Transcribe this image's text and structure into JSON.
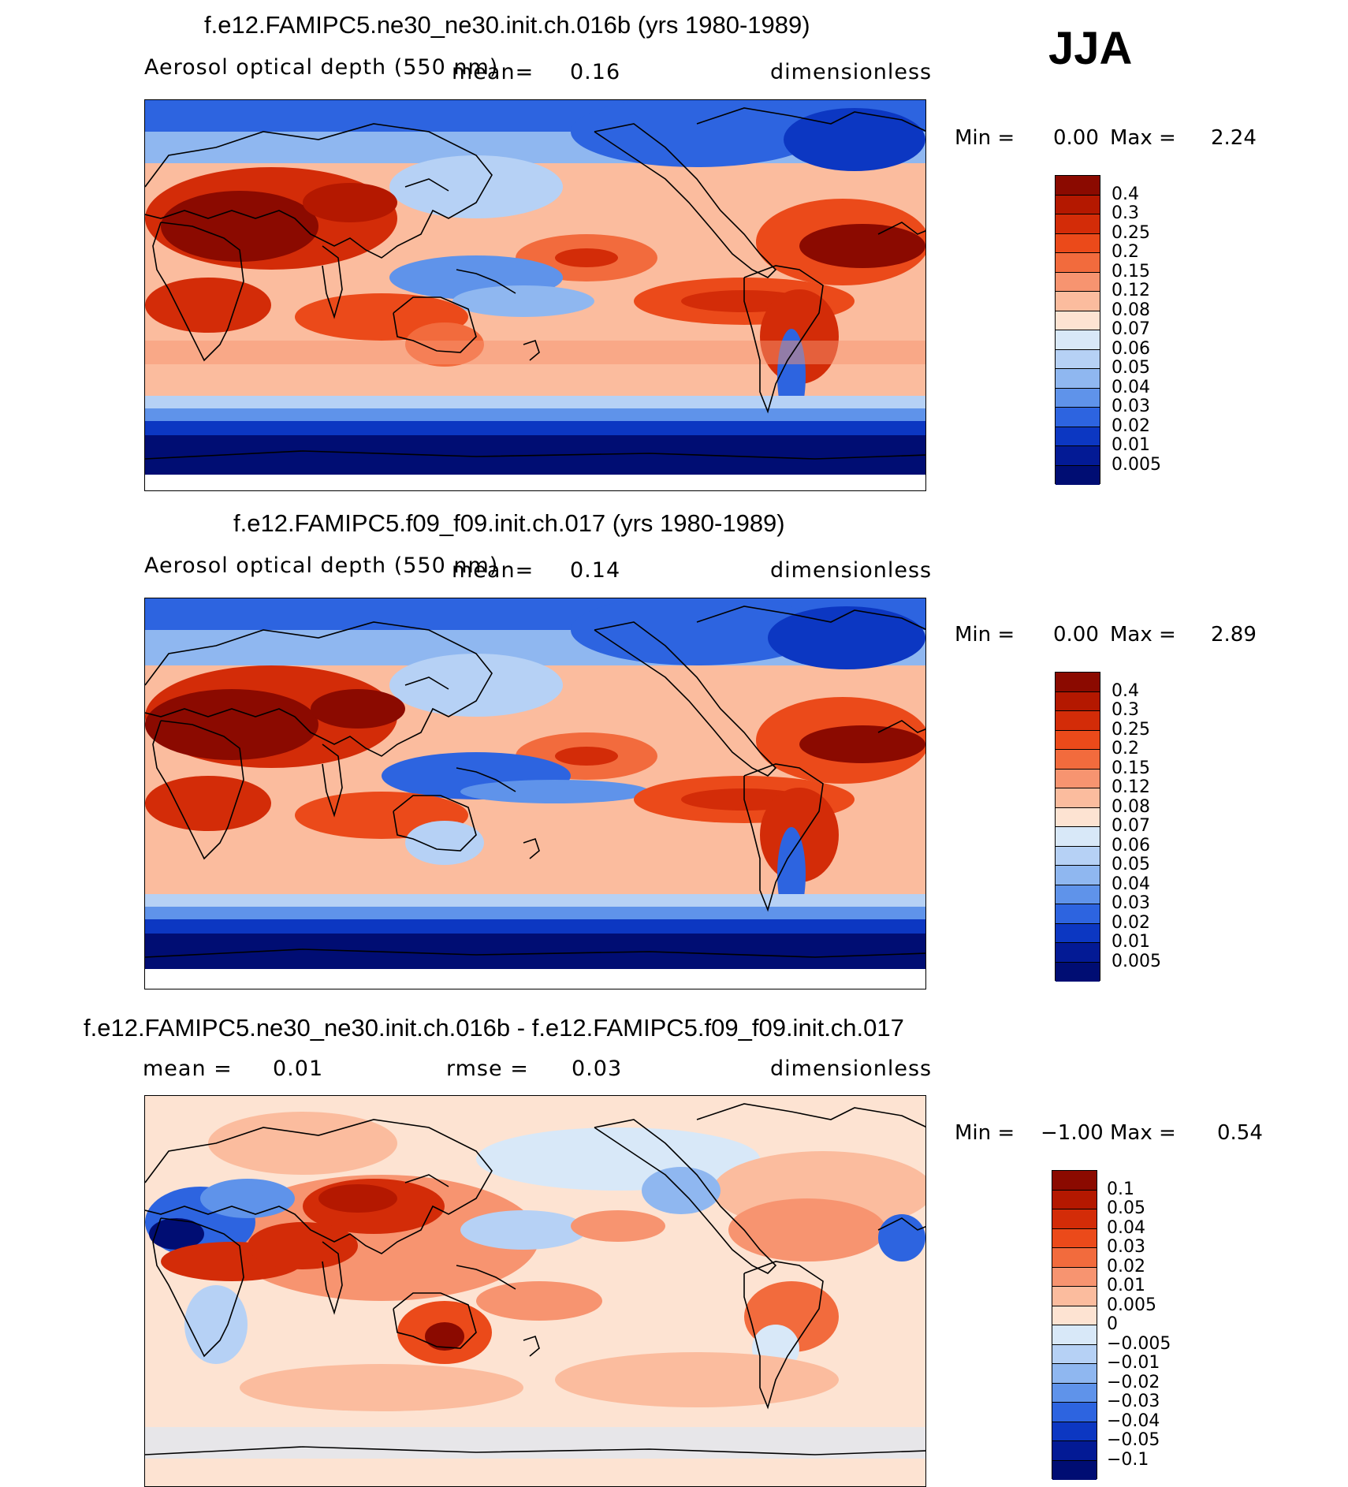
{
  "season": "JJA",
  "panels": [
    {
      "title": "f.e12.FAMIPC5.ne30_ne30.init.ch.016b (yrs 1980-1989)",
      "variable": "Aerosol optical depth (550 nm)",
      "mean_label": "mean=",
      "mean_value": "0.16",
      "units": "dimensionless",
      "min_label": "Min =",
      "min_value": "0.00",
      "max_label": "Max =",
      "max_value": "2.24",
      "colorbar": {
        "labels": [
          "0.4",
          "0.3",
          "0.25",
          "0.2",
          "0.15",
          "0.12",
          "0.08",
          "0.07",
          "0.06",
          "0.05",
          "0.04",
          "0.03",
          "0.02",
          "0.01",
          "0.005"
        ],
        "colors": [
          "#8b0a00",
          "#b41800",
          "#d32c08",
          "#eb4a1a",
          "#f26b3d",
          "#f79470",
          "#fbbc9e",
          "#fde3d2",
          "#d8e8f8",
          "#b6d1f5",
          "#8fb7f0",
          "#5f93ea",
          "#2d64e0",
          "#0c37c2",
          "#031a95",
          "#000d73"
        ]
      }
    },
    {
      "title": "f.e12.FAMIPC5.f09_f09.init.ch.017 (yrs 1980-1989)",
      "variable": "Aerosol optical depth (550 nm)",
      "mean_label": "mean=",
      "mean_value": "0.14",
      "units": "dimensionless",
      "min_label": "Min =",
      "min_value": "0.00",
      "max_label": "Max =",
      "max_value": "2.89",
      "colorbar": {
        "labels": [
          "0.4",
          "0.3",
          "0.25",
          "0.2",
          "0.15",
          "0.12",
          "0.08",
          "0.07",
          "0.06",
          "0.05",
          "0.04",
          "0.03",
          "0.02",
          "0.01",
          "0.005"
        ],
        "colors": [
          "#8b0a00",
          "#b41800",
          "#d32c08",
          "#eb4a1a",
          "#f26b3d",
          "#f79470",
          "#fbbc9e",
          "#fde3d2",
          "#d8e8f8",
          "#b6d1f5",
          "#8fb7f0",
          "#5f93ea",
          "#2d64e0",
          "#0c37c2",
          "#031a95",
          "#000d73"
        ]
      }
    },
    {
      "title": "f.e12.FAMIPC5.ne30_ne30.init.ch.016b - f.e12.FAMIPC5.f09_f09.init.ch.017",
      "mean_label": "mean =",
      "mean_value": "0.01",
      "rmse_label": "rmse =",
      "rmse_value": "0.03",
      "units": "dimensionless",
      "min_label": "Min =",
      "min_value": "−1.00",
      "max_label": "Max =",
      "max_value": "0.54",
      "colorbar": {
        "labels": [
          "0.1",
          "0.05",
          "0.04",
          "0.03",
          "0.02",
          "0.01",
          "0.005",
          "0",
          "−0.005",
          "−0.01",
          "−0.02",
          "−0.03",
          "−0.04",
          "−0.05",
          "−0.1"
        ],
        "colors": [
          "#8b0a00",
          "#b41800",
          "#d32c08",
          "#eb4a1a",
          "#f26b3d",
          "#f79470",
          "#fbbc9e",
          "#fde3d2",
          "#d8e8f8",
          "#b6d1f5",
          "#8fb7f0",
          "#5f93ea",
          "#2d64e0",
          "#0c37c2",
          "#031a95",
          "#000d73"
        ]
      }
    }
  ]
}
